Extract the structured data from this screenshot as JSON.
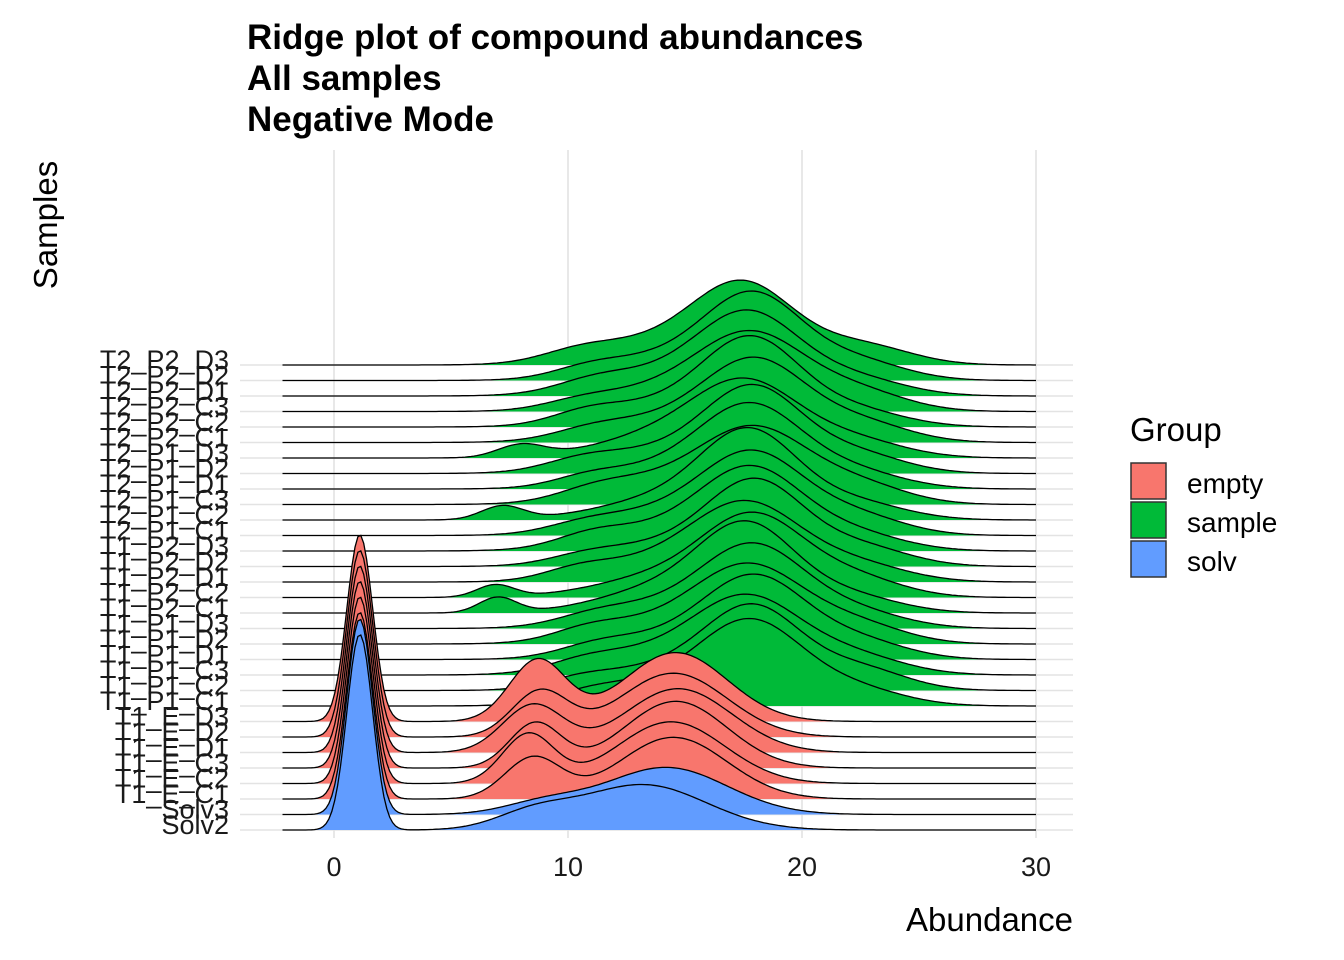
{
  "chart_data": {
    "type": "ridgeline",
    "title_lines": [
      "Ridge plot of compound abundances",
      "All samples",
      "Negative Mode"
    ],
    "xlabel": "Abundance",
    "ylabel": "Samples",
    "xlim": [
      -2.2,
      30
    ],
    "x_ticks": [
      0,
      10,
      20,
      30
    ],
    "x_tick_labels": [
      "0",
      "10",
      "20",
      "30"
    ],
    "grid": true,
    "legend": {
      "title": "Group",
      "position": "right",
      "entries": [
        {
          "name": "empty",
          "color": "#F8766D"
        },
        {
          "name": "sample",
          "color": "#00BA38"
        },
        {
          "name": "solv",
          "color": "#619CFF"
        }
      ]
    },
    "samples": [
      {
        "label": "Solv2",
        "group": "solv",
        "components": [
          [
            1.1,
            0.55,
            0.44
          ],
          [
            13.2,
            2.7,
            0.5
          ],
          [
            8.5,
            1.6,
            0.1
          ]
        ]
      },
      {
        "label": "Solv3",
        "group": "solv",
        "components": [
          [
            1.1,
            0.55,
            0.44
          ],
          [
            14.2,
            2.6,
            0.5
          ],
          [
            9.0,
            1.7,
            0.08
          ]
        ]
      },
      {
        "label": "T1_E_C1",
        "group": "empty",
        "components": [
          [
            1.1,
            0.55,
            0.42
          ],
          [
            14.5,
            2.3,
            0.58
          ],
          [
            8.5,
            1.2,
            0.2
          ]
        ]
      },
      {
        "label": "T1_E_C2",
        "group": "empty",
        "components": [
          [
            1.1,
            0.55,
            0.42
          ],
          [
            14.4,
            2.3,
            0.58
          ],
          [
            8.3,
            1.1,
            0.22
          ]
        ]
      },
      {
        "label": "T1_E_C3",
        "group": "empty",
        "components": [
          [
            1.1,
            0.55,
            0.42
          ],
          [
            14.6,
            2.2,
            0.6
          ],
          [
            8.6,
            1.1,
            0.2
          ]
        ]
      },
      {
        "label": "T1_E_D1",
        "group": "empty",
        "components": [
          [
            1.1,
            0.55,
            0.42
          ],
          [
            14.7,
            2.3,
            0.6
          ],
          [
            8.5,
            1.3,
            0.25
          ]
        ]
      },
      {
        "label": "T1_E_D2",
        "group": "empty",
        "components": [
          [
            1.1,
            0.55,
            0.42
          ],
          [
            14.5,
            2.3,
            0.6
          ],
          [
            8.8,
            1.2,
            0.22
          ]
        ]
      },
      {
        "label": "T1_E_D3",
        "group": "empty",
        "components": [
          [
            1.1,
            0.55,
            0.42
          ],
          [
            14.6,
            2.2,
            0.62
          ],
          [
            8.7,
            1.2,
            0.3
          ]
        ]
      },
      {
        "label": "T1_P1_C1",
        "group": "sample",
        "components": [
          [
            17.9,
            2.1,
            0.6
          ],
          [
            14.8,
            3.0,
            0.3
          ],
          [
            22.0,
            2.2,
            0.16
          ],
          [
            11.0,
            1.6,
            0.06
          ]
        ]
      },
      {
        "label": "T1_P1_C2",
        "group": "sample",
        "components": [
          [
            18.0,
            2.0,
            0.6
          ],
          [
            14.5,
            2.8,
            0.28
          ],
          [
            22.4,
            2.0,
            0.18
          ],
          [
            10.5,
            1.5,
            0.05
          ]
        ]
      },
      {
        "label": "T1_P1_C3",
        "group": "sample",
        "components": [
          [
            17.8,
            2.2,
            0.58
          ],
          [
            14.5,
            3.0,
            0.3
          ],
          [
            22.1,
            2.2,
            0.17
          ],
          [
            10.8,
            1.6,
            0.06
          ]
        ]
      },
      {
        "label": "T1_P1_D1",
        "group": "sample",
        "components": [
          [
            18.1,
            2.1,
            0.6
          ],
          [
            14.9,
            2.9,
            0.28
          ],
          [
            22.3,
            2.1,
            0.16
          ],
          [
            11.2,
            1.6,
            0.06
          ]
        ]
      },
      {
        "label": "T1_P1_D2",
        "group": "sample",
        "components": [
          [
            17.9,
            2.2,
            0.58
          ],
          [
            14.7,
            3.0,
            0.3
          ],
          [
            22.2,
            2.1,
            0.17
          ],
          [
            10.9,
            1.5,
            0.06
          ]
        ]
      },
      {
        "label": "T1_P1_D3",
        "group": "sample",
        "components": [
          [
            18.0,
            2.1,
            0.6
          ],
          [
            14.6,
            2.9,
            0.29
          ],
          [
            22.0,
            2.2,
            0.16
          ],
          [
            11.1,
            1.6,
            0.05
          ]
        ]
      },
      {
        "label": "T1_P2_C1",
        "group": "sample",
        "components": [
          [
            17.7,
            2.0,
            0.62
          ],
          [
            14.4,
            2.8,
            0.3
          ],
          [
            21.8,
            2.2,
            0.16
          ],
          [
            7.0,
            0.8,
            0.05
          ]
        ]
      },
      {
        "label": "T1_P2_C2",
        "group": "sample",
        "components": [
          [
            18.0,
            2.1,
            0.6
          ],
          [
            14.6,
            3.0,
            0.29
          ],
          [
            22.1,
            2.1,
            0.17
          ],
          [
            6.9,
            0.8,
            0.04
          ]
        ]
      },
      {
        "label": "T1_P2_D1",
        "group": "sample",
        "components": [
          [
            17.8,
            2.2,
            0.58
          ],
          [
            14.7,
            2.9,
            0.3
          ],
          [
            22.2,
            2.2,
            0.16
          ],
          [
            10.5,
            1.5,
            0.06
          ]
        ]
      },
      {
        "label": "T1_P2_D2",
        "group": "sample",
        "components": [
          [
            18.1,
            2.0,
            0.6
          ],
          [
            14.8,
            2.9,
            0.28
          ],
          [
            22.4,
            2.1,
            0.17
          ],
          [
            10.8,
            1.6,
            0.05
          ]
        ]
      },
      {
        "label": "T1_P2_D3",
        "group": "sample",
        "components": [
          [
            17.9,
            2.1,
            0.6
          ],
          [
            14.5,
            3.0,
            0.29
          ],
          [
            22.0,
            2.2,
            0.16
          ],
          [
            11.0,
            1.5,
            0.06
          ]
        ]
      },
      {
        "label": "T2_P1_C1",
        "group": "sample",
        "components": [
          [
            18.0,
            2.1,
            0.6
          ],
          [
            14.6,
            2.9,
            0.3
          ],
          [
            22.2,
            2.1,
            0.17
          ],
          [
            10.7,
            1.6,
            0.05
          ]
        ]
      },
      {
        "label": "T2_P1_C2",
        "group": "sample",
        "components": [
          [
            17.8,
            2.0,
            0.62
          ],
          [
            14.7,
            3.0,
            0.29
          ],
          [
            22.1,
            2.2,
            0.16
          ],
          [
            7.2,
            0.9,
            0.05
          ]
        ]
      },
      {
        "label": "T2_P1_C3",
        "group": "sample",
        "components": [
          [
            18.1,
            2.2,
            0.58
          ],
          [
            14.5,
            2.9,
            0.3
          ],
          [
            22.3,
            2.1,
            0.17
          ],
          [
            11.2,
            1.6,
            0.06
          ]
        ]
      },
      {
        "label": "T2_P1_D1",
        "group": "sample",
        "components": [
          [
            17.9,
            2.1,
            0.6
          ],
          [
            14.8,
            2.9,
            0.28
          ],
          [
            22.0,
            2.2,
            0.16
          ],
          [
            10.9,
            1.5,
            0.05
          ]
        ]
      },
      {
        "label": "T2_P1_D2",
        "group": "sample",
        "components": [
          [
            18.0,
            2.0,
            0.6
          ],
          [
            14.6,
            3.0,
            0.3
          ],
          [
            22.2,
            2.1,
            0.17
          ],
          [
            10.6,
            1.6,
            0.06
          ]
        ]
      },
      {
        "label": "T2_P1_D3",
        "group": "sample",
        "components": [
          [
            17.7,
            2.2,
            0.58
          ],
          [
            14.4,
            2.9,
            0.29
          ],
          [
            22.1,
            2.2,
            0.16
          ],
          [
            8.0,
            1.0,
            0.05
          ]
        ]
      },
      {
        "label": "T2_P2_C1",
        "group": "sample",
        "components": [
          [
            18.1,
            2.1,
            0.6
          ],
          [
            14.7,
            3.0,
            0.3
          ],
          [
            22.4,
            2.1,
            0.17
          ],
          [
            11.0,
            1.6,
            0.05
          ]
        ]
      },
      {
        "label": "T2_P2_C2",
        "group": "sample",
        "components": [
          [
            17.9,
            2.0,
            0.62
          ],
          [
            14.5,
            2.9,
            0.29
          ],
          [
            22.0,
            2.2,
            0.16
          ],
          [
            10.8,
            1.5,
            0.06
          ]
        ]
      },
      {
        "label": "T2_P2_C3",
        "group": "sample",
        "components": [
          [
            18.0,
            2.2,
            0.58
          ],
          [
            14.8,
            2.9,
            0.3
          ],
          [
            22.3,
            2.1,
            0.17
          ],
          [
            10.6,
            1.6,
            0.05
          ]
        ]
      },
      {
        "label": "T2_P2_D1",
        "group": "sample",
        "components": [
          [
            17.8,
            2.1,
            0.6
          ],
          [
            14.6,
            3.0,
            0.29
          ],
          [
            22.1,
            2.2,
            0.16
          ],
          [
            11.1,
            1.6,
            0.06
          ]
        ]
      },
      {
        "label": "T2_P2_D2",
        "group": "sample",
        "components": [
          [
            18.0,
            2.0,
            0.6
          ],
          [
            14.7,
            2.9,
            0.3
          ],
          [
            22.2,
            2.1,
            0.17
          ],
          [
            10.9,
            1.5,
            0.05
          ]
        ]
      },
      {
        "label": "T2_P2_D3",
        "group": "sample",
        "components": [
          [
            17.6,
            2.1,
            0.6
          ],
          [
            14.3,
            3.0,
            0.3
          ],
          [
            22.5,
            2.1,
            0.17
          ],
          [
            10.5,
            1.6,
            0.06
          ]
        ]
      }
    ]
  }
}
